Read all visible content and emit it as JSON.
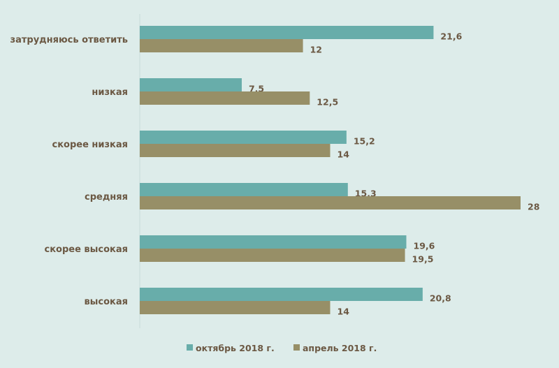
{
  "chart_data": {
    "type": "bar",
    "orientation": "horizontal",
    "title": "",
    "xlabel": "",
    "ylabel": "",
    "xlim": [
      0,
      28
    ],
    "grid": false,
    "legend_position": "bottom",
    "categories": [
      "затрудняюсь ответить",
      "низкая",
      "скорее низкая",
      "средняя",
      "скорее высокая",
      "высокая"
    ],
    "series": [
      {
        "name": "октябрь 2018 г.",
        "color": "#68adaa",
        "values": [
          21.6,
          7.5,
          15.2,
          15.3,
          19.6,
          20.8
        ],
        "labels": [
          "21,6",
          "7,5",
          "15,2",
          "15,3",
          "19,6",
          "20,8"
        ]
      },
      {
        "name": "апрель 2018 г.",
        "color": "#978f67",
        "values": [
          12,
          12.5,
          14,
          28,
          19.5,
          14
        ],
        "labels": [
          "12",
          "12,5",
          "14",
          "28",
          "19,5",
          "14"
        ]
      }
    ]
  }
}
